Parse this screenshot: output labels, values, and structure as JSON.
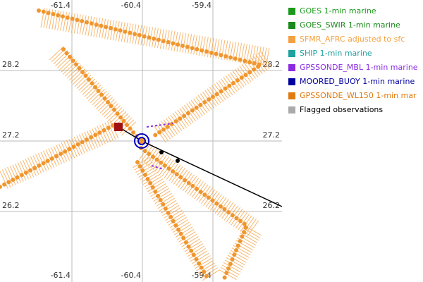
{
  "map": {
    "lon_ticks": [
      -61.4,
      -60.4,
      -59.4
    ],
    "lat_ticks": [
      28.2,
      27.2,
      26.2
    ]
  },
  "legend": [
    {
      "label": "GOES 1-min marine",
      "color": "#1a9a1a"
    },
    {
      "label": "GOES_SWIR 1-min marine",
      "color": "#1a8a1a"
    },
    {
      "label": "SFMR_AFRC adjusted to sfc",
      "color": "#f5a040"
    },
    {
      "label": "SHIP 1-min marine",
      "color": "#20a0a0"
    },
    {
      "label": "GPSSONDE_MBL 1-min marine",
      "color": "#8a2be2"
    },
    {
      "label": "MOORED_BUOY 1-min marine",
      "color": "#0000a0"
    },
    {
      "label": "GPSSONDE_WL150 1-min mar",
      "color": "#e07a10"
    },
    {
      "label": "Flagged observations",
      "color": "#aaaaaa"
    }
  ]
}
